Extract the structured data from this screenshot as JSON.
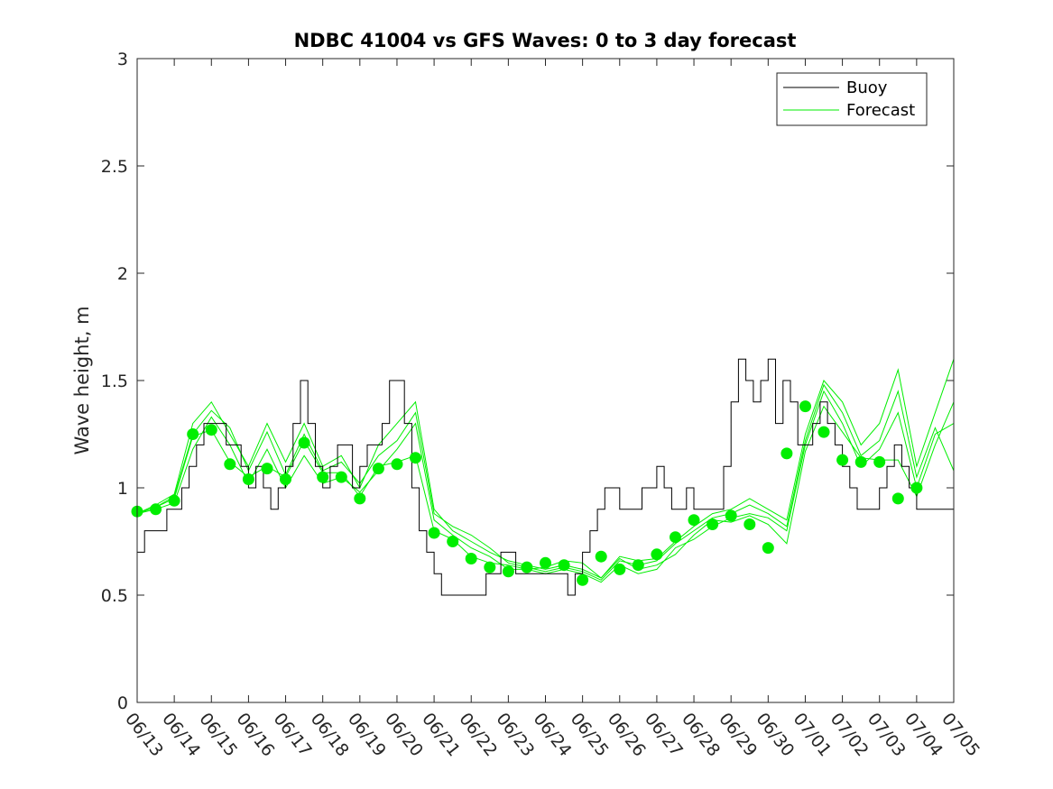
{
  "chart_data": {
    "type": "line",
    "title": "NDBC 41004 vs GFS Waves: 0 to 3 day forecast",
    "ylabel": "Wave height, m",
    "xlabel": "",
    "xlim": [
      "06/13",
      "07/05"
    ],
    "ylim": [
      0,
      3
    ],
    "yticks": [
      0,
      0.5,
      1,
      1.5,
      2,
      2.5,
      3
    ],
    "ytick_labels": [
      "0",
      "0.5",
      "1",
      "1.5",
      "2",
      "2.5",
      "3"
    ],
    "xtick_labels": [
      "06/13",
      "06/14",
      "06/15",
      "06/16",
      "06/17",
      "06/18",
      "06/19",
      "06/20",
      "06/21",
      "06/22",
      "06/23",
      "06/24",
      "06/25",
      "06/26",
      "06/27",
      "06/28",
      "06/29",
      "06/30",
      "07/01",
      "07/02",
      "07/03",
      "07/04",
      "07/05"
    ],
    "legend": {
      "placement": "top-right",
      "entries": [
        "Buoy",
        "Forecast"
      ]
    },
    "colors": {
      "buoy": "#000000",
      "forecast": "#00ee00",
      "axes": "#262626"
    },
    "series": [
      {
        "name": "Buoy",
        "x": [
          0,
          0.2,
          0.4,
          0.6,
          0.8,
          1.0,
          1.2,
          1.4,
          1.6,
          1.8,
          2.0,
          2.2,
          2.4,
          2.6,
          2.8,
          3.0,
          3.2,
          3.4,
          3.6,
          3.8,
          4.0,
          4.2,
          4.4,
          4.6,
          4.8,
          5.0,
          5.2,
          5.4,
          5.6,
          5.8,
          6.0,
          6.2,
          6.4,
          6.6,
          6.8,
          7.0,
          7.2,
          7.4,
          7.6,
          7.8,
          8.0,
          8.2,
          8.4,
          8.6,
          8.8,
          9.0,
          9.2,
          9.4,
          9.6,
          9.8,
          10.0,
          10.2,
          10.4,
          10.6,
          10.8,
          11.0,
          11.2,
          11.4,
          11.6,
          11.8,
          12.0,
          12.2,
          12.4,
          12.6,
          12.8,
          13.0,
          13.2,
          13.4,
          13.6,
          13.8,
          14.0,
          14.2,
          14.4,
          14.6,
          14.8,
          15.0,
          15.2,
          15.4,
          15.6,
          15.8,
          16.0,
          16.2,
          16.4,
          16.6,
          16.8,
          17.0,
          17.2,
          17.4,
          17.6,
          17.8,
          18.0,
          18.2,
          18.4,
          18.6,
          18.8,
          19.0,
          19.2,
          19.4,
          19.6,
          19.8,
          20.0,
          20.2,
          20.4,
          20.6,
          20.8,
          21.0,
          21.2,
          21.4,
          21.6,
          21.8,
          22.0
        ],
        "y": [
          0.7,
          0.8,
          0.8,
          0.8,
          0.9,
          0.9,
          1.0,
          1.1,
          1.2,
          1.3,
          1.3,
          1.3,
          1.2,
          1.2,
          1.1,
          1.0,
          1.1,
          1.0,
          0.9,
          1.0,
          1.1,
          1.3,
          1.5,
          1.3,
          1.1,
          1.0,
          1.1,
          1.2,
          1.2,
          1.0,
          1.1,
          1.2,
          1.2,
          1.3,
          1.5,
          1.5,
          1.3,
          1.0,
          0.8,
          0.7,
          0.6,
          0.5,
          0.5,
          0.5,
          0.5,
          0.5,
          0.5,
          0.6,
          0.6,
          0.7,
          0.7,
          0.6,
          0.6,
          0.6,
          0.6,
          0.6,
          0.6,
          0.6,
          0.5,
          0.6,
          0.7,
          0.8,
          0.9,
          1.0,
          1.0,
          0.9,
          0.9,
          0.9,
          1.0,
          1.0,
          1.1,
          1.0,
          0.9,
          0.9,
          1.0,
          0.9,
          0.9,
          0.9,
          0.9,
          1.1,
          1.4,
          1.6,
          1.5,
          1.4,
          1.5,
          1.6,
          1.3,
          1.5,
          1.4,
          1.2,
          1.2,
          1.3,
          1.4,
          1.3,
          1.2,
          1.1,
          1.0,
          0.9,
          0.9,
          0.9,
          1.0,
          1.1,
          1.2,
          1.1,
          1.0,
          0.9,
          0.9,
          0.9,
          0.9,
          0.9,
          0.9
        ]
      }
    ],
    "forecast_series": [
      {
        "name": "Forecast",
        "x": [
          0,
          0.5,
          1,
          1.5,
          2,
          2.5,
          3,
          3.5,
          4,
          4.5,
          5,
          5.5,
          6,
          6.5,
          7,
          7.5,
          8,
          8.5,
          9,
          9.5,
          10,
          10.5,
          11,
          11.5,
          12,
          12.5,
          13,
          13.5,
          14,
          14.5,
          15,
          15.5,
          16,
          16.5,
          17,
          17.5,
          18,
          18.5,
          19,
          19.5,
          20,
          20.5,
          21,
          21.5,
          22
        ],
        "y": [
          0.88,
          0.91,
          0.95,
          1.24,
          1.27,
          1.12,
          1.05,
          1.1,
          1.05,
          1.22,
          1.07,
          1.07,
          0.96,
          1.1,
          1.12,
          1.15,
          0.8,
          0.76,
          0.68,
          0.65,
          0.64,
          0.62,
          0.63,
          0.66,
          0.65,
          0.58,
          0.67,
          0.62,
          0.64,
          0.69,
          0.78,
          0.85,
          0.84,
          0.87,
          0.83,
          0.74,
          1.17,
          1.38,
          1.26,
          1.14,
          1.13,
          1.13,
          0.96,
          1.2,
          1.4
        ]
      },
      {
        "name": "Forecast",
        "x": [
          0,
          0.5,
          1,
          1.5,
          2,
          2.5,
          3,
          3.5,
          4,
          4.5,
          5,
          5.5,
          6,
          6.5,
          7,
          7.5,
          8,
          8.5,
          9,
          9.5,
          10,
          10.5,
          11,
          11.5,
          12,
          12.5,
          13,
          13.5,
          14,
          14.5,
          15,
          15.5,
          16,
          16.5,
          17,
          17.5,
          18,
          18.5,
          19,
          19.5,
          20,
          20.5,
          21,
          21.5,
          22
        ],
        "y": [
          0.88,
          0.92,
          0.97,
          1.3,
          1.4,
          1.25,
          1.1,
          1.3,
          1.12,
          1.3,
          1.1,
          1.15,
          1.0,
          1.2,
          1.3,
          1.4,
          0.9,
          0.8,
          0.75,
          0.7,
          0.66,
          0.64,
          0.62,
          0.64,
          0.62,
          0.58,
          0.68,
          0.66,
          0.67,
          0.75,
          0.82,
          0.88,
          0.9,
          0.95,
          0.9,
          0.85,
          1.25,
          1.5,
          1.4,
          1.2,
          1.3,
          1.55,
          1.1,
          1.35,
          1.6
        ]
      },
      {
        "name": "Forecast",
        "x": [
          0,
          0.5,
          1,
          1.5,
          2,
          2.5,
          3,
          3.5,
          4,
          4.5,
          5,
          5.5,
          6,
          6.5,
          7,
          7.5,
          8,
          8.5,
          9,
          9.5,
          10,
          10.5,
          11,
          11.5,
          12,
          12.5,
          13,
          13.5,
          14,
          14.5,
          15,
          15.5,
          16,
          16.5,
          17,
          17.5,
          18,
          18.5,
          19,
          19.5,
          20,
          20.5,
          21,
          21.5,
          22
        ],
        "y": [
          0.88,
          0.9,
          0.93,
          1.18,
          1.33,
          1.2,
          1.02,
          1.18,
          1.0,
          1.15,
          1.02,
          1.05,
          0.98,
          1.08,
          1.18,
          1.3,
          0.85,
          0.78,
          0.72,
          0.68,
          0.62,
          0.62,
          0.6,
          0.62,
          0.6,
          0.56,
          0.64,
          0.6,
          0.62,
          0.72,
          0.76,
          0.82,
          0.86,
          0.88,
          0.86,
          0.8,
          1.2,
          1.45,
          1.3,
          1.1,
          1.18,
          1.35,
          1.0,
          1.25,
          1.3
        ]
      },
      {
        "name": "Forecast",
        "x": [
          0,
          0.5,
          1,
          1.5,
          2,
          2.5,
          3,
          3.5,
          4,
          4.5,
          5,
          5.5,
          6,
          6.5,
          7,
          7.5,
          8,
          8.5,
          9,
          9.5,
          10,
          10.5,
          11,
          11.5,
          12,
          12.5,
          13,
          13.5,
          14,
          14.5,
          15,
          15.5,
          16,
          16.5,
          17,
          17.5,
          18,
          18.5,
          19,
          19.5,
          20,
          20.5,
          21,
          21.5,
          22
        ],
        "y": [
          0.88,
          0.91,
          0.96,
          1.25,
          1.36,
          1.28,
          1.08,
          1.26,
          1.06,
          1.25,
          1.08,
          1.12,
          1.02,
          1.15,
          1.22,
          1.35,
          0.88,
          0.82,
          0.78,
          0.72,
          0.65,
          0.63,
          0.61,
          0.63,
          0.61,
          0.57,
          0.66,
          0.64,
          0.66,
          0.74,
          0.8,
          0.86,
          0.88,
          0.92,
          0.88,
          0.82,
          1.22,
          1.48,
          1.35,
          1.15,
          1.22,
          1.45,
          1.05,
          1.28,
          1.08
        ]
      }
    ],
    "markers": {
      "name": "Forecast",
      "x": [
        0,
        0.5,
        1,
        1.5,
        2,
        2.5,
        3,
        3.5,
        4,
        4.5,
        5,
        5.5,
        6,
        6.5,
        7,
        7.5,
        8,
        8.5,
        9,
        9.5,
        10,
        10.5,
        11,
        11.5,
        12,
        12.5,
        13,
        13.5,
        14,
        14.5,
        15,
        15.5,
        16,
        16.5,
        17,
        17.5,
        18,
        18.5,
        19,
        19.5,
        20,
        20.5,
        21
      ],
      "y": [
        0.89,
        0.9,
        0.94,
        1.25,
        1.27,
        1.11,
        1.04,
        1.09,
        1.04,
        1.21,
        1.05,
        1.05,
        0.95,
        1.09,
        1.11,
        1.14,
        0.79,
        0.75,
        0.67,
        0.63,
        0.61,
        0.63,
        0.65,
        0.64,
        0.57,
        0.68,
        0.62,
        0.64,
        0.69,
        0.77,
        0.85,
        0.83,
        0.87,
        0.83,
        0.72,
        1.16,
        1.38,
        1.26,
        1.13,
        1.12,
        1.12,
        0.95,
        1.0
      ]
    }
  }
}
